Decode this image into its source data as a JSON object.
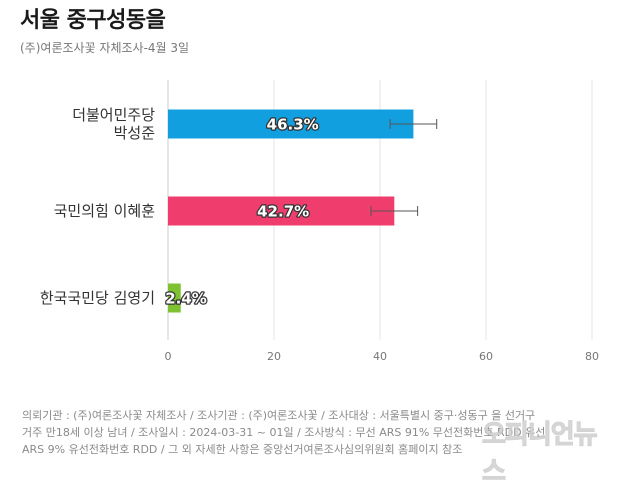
{
  "title": "서울 중구성동을",
  "subtitle": "(주)여론조사꽃 자체조사-4월 3일",
  "chart_data": {
    "type": "bar",
    "orientation": "horizontal",
    "categories": [
      [
        "더불어민주당",
        "박성준"
      ],
      [
        "국민의힘 이혜훈"
      ],
      [
        "한국국민당 김영기"
      ]
    ],
    "values": [
      46.3,
      42.7,
      2.4
    ],
    "value_labels": [
      "46.3%",
      "42.7%",
      "2.4%"
    ],
    "error_margin": [
      4.4,
      4.4,
      0
    ],
    "colors": [
      "#129fe0",
      "#ef3e6d",
      "#7fc231"
    ],
    "xlim": [
      0,
      80
    ],
    "xticks": [
      0,
      20,
      40,
      60,
      80
    ],
    "xtick_labels": [
      "0",
      "20",
      "40",
      "60",
      "80"
    ],
    "grid": "vertical"
  },
  "footer": {
    "line1": "의뢰기관 : (주)여론조사꽃 자체조사 / 조사기관 : (주)여론조사꽃 / 조사대상 : 서울특별시 중구·성동구 을 선거구",
    "line2": "거주 만18세 이상 남녀 / 조사일시 : 2024-03-31 ~ 01일 / 조사방식 : 무선 ARS 91% 무선전화번호 RDD 유선",
    "line3": "ARS 9% 유선전화번호 RDD / 그 외 자세한 사항은 중앙선거여론조사심의위원회 홈페이지 참조"
  },
  "watermark": "오피니언뉴스"
}
